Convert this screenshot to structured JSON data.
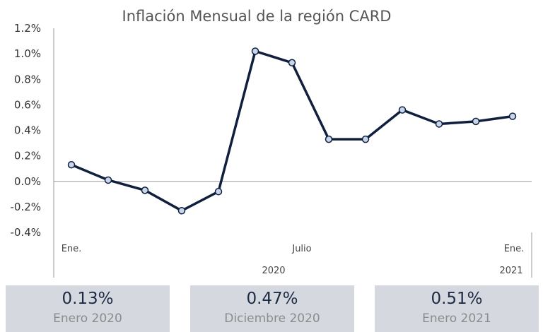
{
  "chart_data": {
    "type": "line",
    "title": "Inflación Mensual de la región CARD",
    "x": [
      "2020-01",
      "2020-02",
      "2020-03",
      "2020-04",
      "2020-05",
      "2020-06",
      "2020-07",
      "2020-08",
      "2020-09",
      "2020-10",
      "2020-11",
      "2020-12",
      "2021-01"
    ],
    "series": [
      {
        "values": [
          0.13,
          0.01,
          -0.07,
          -0.23,
          -0.08,
          1.02,
          0.93,
          0.33,
          0.33,
          0.56,
          0.45,
          0.47,
          0.51
        ]
      }
    ],
    "ylim": [
      -0.4,
      1.2
    ],
    "yticks": [
      "1.2%",
      "1.0%",
      "0.8%",
      "0.6%",
      "0.4%",
      "0.2%",
      "0.0%",
      "-0.2%",
      "-0.4%"
    ],
    "xtick_labels": [
      {
        "index": 0,
        "label": "Ene."
      },
      {
        "index": 6,
        "label": "Julio"
      },
      {
        "index": 12,
        "label": "Ene."
      }
    ],
    "year_labels": [
      {
        "index": 6,
        "label": "2020"
      },
      {
        "index": 12,
        "label": "2021"
      }
    ],
    "grid": false,
    "line_color": "#0f1f3d",
    "marker_fill": "#c9d6ea"
  },
  "summary_cards": [
    {
      "value": "0.13%",
      "label": "Enero 2020"
    },
    {
      "value": "0.47%",
      "label": "Diciembre 2020"
    },
    {
      "value": "0.51%",
      "label": "Enero 2021"
    }
  ]
}
